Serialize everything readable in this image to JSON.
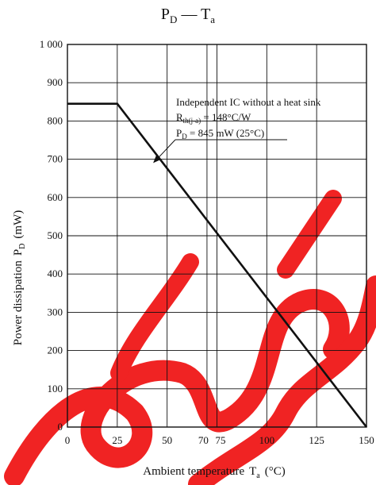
{
  "watermark": {
    "text": "Discontinued / Maintenance",
    "color": "#f01818"
  },
  "chart_data": {
    "type": "line",
    "title": {
      "main": "P",
      "main_sub": "D",
      "dash": " — ",
      "second": "T",
      "second_sub": "a"
    },
    "xlabel": {
      "text": "Ambient temperature",
      "symbol": "T",
      "symbol_sub": "a",
      "unit": "(°C)"
    },
    "ylabel": {
      "text": "Power dissipation",
      "symbol": "P",
      "symbol_sub": "D",
      "unit": "(mW)"
    },
    "xlim": [
      0,
      150
    ],
    "ylim": [
      0,
      1000
    ],
    "x_ticks": [
      {
        "value": 0,
        "label": "0"
      },
      {
        "value": 25,
        "label": "25"
      },
      {
        "value": 50,
        "label": "50"
      },
      {
        "value": 70,
        "label": "70"
      },
      {
        "value": 75,
        "label": "75"
      },
      {
        "value": 100,
        "label": "100"
      },
      {
        "value": 125,
        "label": "125"
      },
      {
        "value": 150,
        "label": "150"
      }
    ],
    "y_ticks": [
      {
        "value": 0,
        "label": "0"
      },
      {
        "value": 100,
        "label": "100"
      },
      {
        "value": 200,
        "label": "200"
      },
      {
        "value": 300,
        "label": "300"
      },
      {
        "value": 400,
        "label": "400"
      },
      {
        "value": 500,
        "label": "500"
      },
      {
        "value": 600,
        "label": "600"
      },
      {
        "value": 700,
        "label": "700"
      },
      {
        "value": 800,
        "label": "800"
      },
      {
        "value": 900,
        "label": "900"
      },
      {
        "value": 1000,
        "label": "1 000"
      }
    ],
    "grid": true,
    "series": [
      {
        "x": [
          0,
          25,
          150
        ],
        "y": [
          845,
          845,
          0
        ]
      }
    ],
    "annotation": {
      "line1": "Independent IC without a heat sink",
      "line2_symbol": "R",
      "line2_sub": "th(j-a)",
      "line2_value": " = 148°C/W",
      "line3_symbol": "P",
      "line3_sub": "D",
      "line3_value": " = 845 mW (25°C)",
      "arrow_target": {
        "x": 43,
        "y": 690
      }
    }
  }
}
